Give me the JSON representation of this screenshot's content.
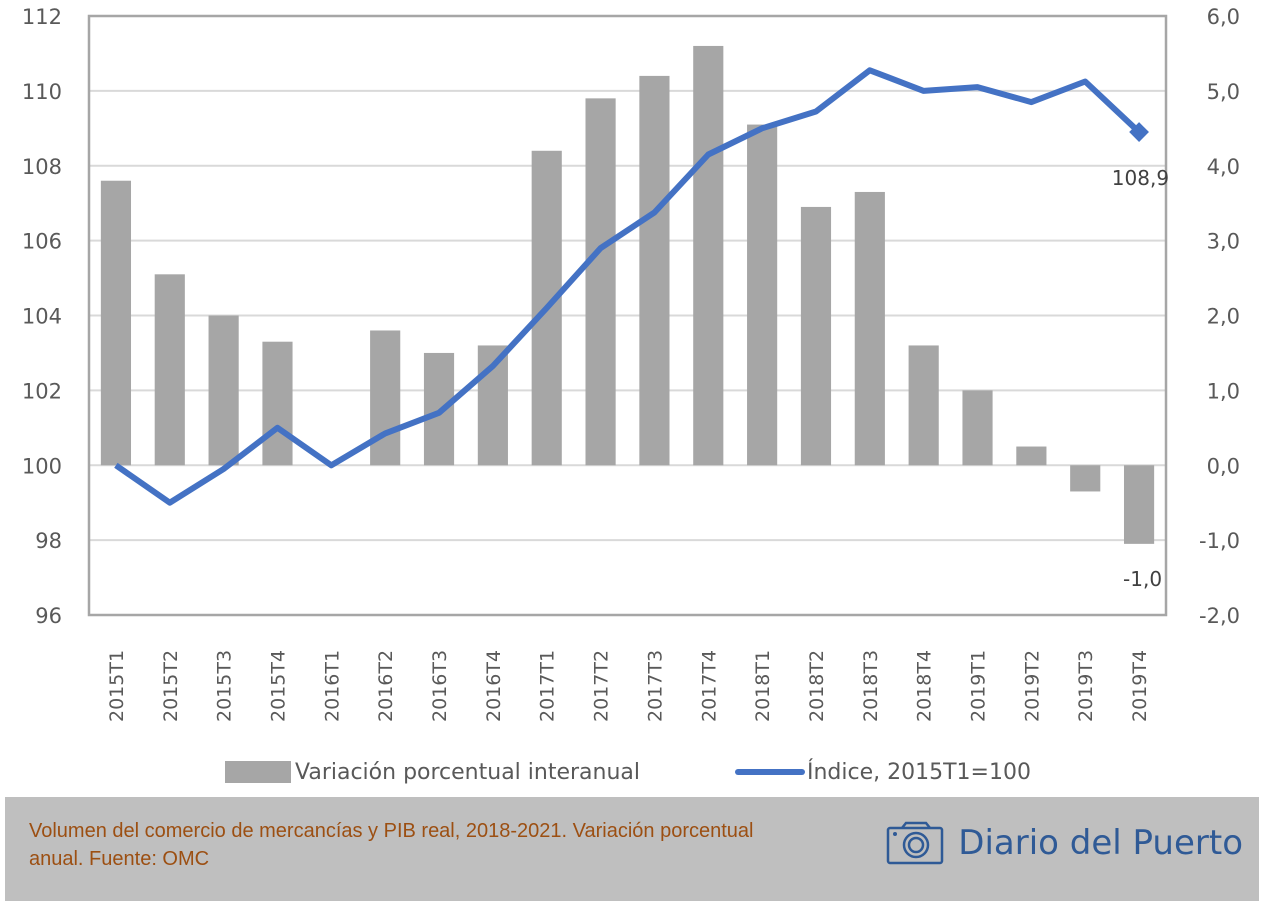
{
  "chart_data": {
    "type": "bar+line",
    "title": "",
    "categories": [
      "2015T1",
      "2015T2",
      "2015T3",
      "2015T4",
      "2016T1",
      "2016T2",
      "2016T3",
      "2016T4",
      "2017T1",
      "2017T2",
      "2017T3",
      "2017T4",
      "2018T1",
      "2018T2",
      "2018T3",
      "2018T4",
      "2019T1",
      "2019T2",
      "2019T3",
      "2019T4"
    ],
    "series": [
      {
        "name": "Variación porcentual interanual",
        "type": "bar",
        "axis": "right",
        "color": "#a6a6a6",
        "values": [
          3.8,
          2.55,
          2.0,
          1.65,
          0.0,
          1.8,
          1.5,
          1.6,
          4.2,
          4.9,
          5.2,
          5.6,
          4.55,
          3.45,
          3.65,
          1.6,
          1.0,
          0.25,
          -0.35,
          -1.05
        ]
      },
      {
        "name": "Índice, 2015T1=100",
        "type": "line",
        "axis": "left",
        "color": "#4472c4",
        "values": [
          100.0,
          99.0,
          99.9,
          101.0,
          100.0,
          100.85,
          101.4,
          102.65,
          104.2,
          105.8,
          106.75,
          108.3,
          109.0,
          109.45,
          110.55,
          110.0,
          110.1,
          109.7,
          110.25,
          108.9
        ]
      }
    ],
    "left_axis": {
      "ylim": [
        96,
        112
      ],
      "ticks": [
        "96",
        "98",
        "100",
        "102",
        "104",
        "106",
        "108",
        "110",
        "112"
      ],
      "tick_values": [
        96,
        98,
        100,
        102,
        104,
        106,
        108,
        110,
        112
      ]
    },
    "right_axis": {
      "ylim": [
        -2,
        6
      ],
      "ticks": [
        "-2,0",
        "-1,0",
        "0,0",
        "1,0",
        "2,0",
        "3,0",
        "4,0",
        "5,0",
        "6,0"
      ],
      "tick_values": [
        -2,
        -1,
        0,
        1,
        2,
        3,
        4,
        5,
        6
      ]
    },
    "data_labels": {
      "line_last": "108,9",
      "bar_last": "-1,0"
    },
    "grid": true,
    "legend_position": "bottom",
    "xlabel": "",
    "ylabel": ""
  },
  "legend": {
    "bar_label": "Variación porcentual interanual",
    "line_label": "Índice, 2015T1=100"
  },
  "footer": {
    "caption": "Volumen del comercio de mercancías y PIB real, 2018-2021. Variación porcentual anual. Fuente: OMC",
    "brand": "Diario del Puerto",
    "brand_icon": "camera-icon",
    "caption_color": "#9c4f12",
    "brand_color": "#2f5a96"
  }
}
